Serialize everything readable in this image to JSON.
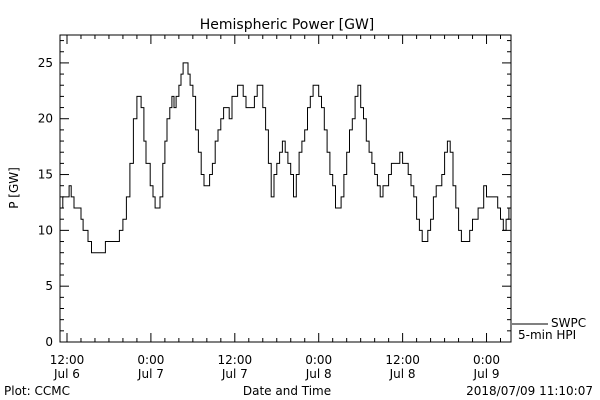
{
  "chart_data": {
    "type": "line",
    "title": "Hemispheric Power [GW]",
    "xlabel": "Date and Time",
    "ylabel": "P [GW]",
    "ylim": [
      0,
      27.5
    ],
    "xlim": [
      -1,
      63.5
    ],
    "grid": false,
    "x_unit": "hours from 2018-07-06 12:00",
    "y_ticks": [
      {
        "value": 0,
        "label": "0"
      },
      {
        "value": 5,
        "label": "5"
      },
      {
        "value": 10,
        "label": "10"
      },
      {
        "value": 15,
        "label": "15"
      },
      {
        "value": 20,
        "label": "20"
      },
      {
        "value": 25,
        "label": "25"
      }
    ],
    "x_ticks": [
      {
        "value": 0,
        "time": "12:00",
        "date": "Jul 6"
      },
      {
        "value": 12,
        "time": "0:00",
        "date": "Jul 7"
      },
      {
        "value": 24,
        "time": "12:00",
        "date": "Jul 7"
      },
      {
        "value": 36,
        "time": "0:00",
        "date": "Jul 8"
      },
      {
        "value": 48,
        "time": "12:00",
        "date": "Jul 8"
      },
      {
        "value": 60,
        "time": "0:00",
        "date": "Jul 9"
      }
    ],
    "series": [
      {
        "name": "",
        "x": [
          -1,
          -0.6,
          -0.3,
          0.0,
          0.3,
          0.6,
          1.0,
          1.3,
          1.7,
          2.0,
          2.3,
          2.7,
          3.0,
          3.5,
          4.0,
          4.5,
          5.0,
          5.5,
          6.0,
          6.5,
          7.0,
          7.5,
          8.0,
          8.5,
          9.0,
          9.5,
          10.0,
          10.3,
          10.6,
          11.0,
          11.3,
          11.6,
          11.9,
          12.3,
          12.6,
          13.0,
          13.3,
          13.7,
          14.0,
          14.3,
          14.7,
          15.0,
          15.3,
          15.6,
          16.0,
          16.3,
          16.6,
          17.0,
          17.3,
          17.6,
          18.0,
          18.4,
          18.8,
          19.2,
          19.6,
          20.0,
          20.4,
          20.8,
          21.2,
          21.6,
          22.0,
          22.4,
          22.8,
          23.2,
          23.6,
          24.0,
          24.4,
          24.8,
          25.2,
          25.6,
          26.0,
          26.4,
          26.8,
          27.2,
          27.6,
          28.0,
          28.4,
          28.8,
          29.2,
          29.6,
          30.0,
          30.4,
          30.8,
          31.2,
          31.6,
          32.0,
          32.4,
          32.8,
          33.2,
          33.6,
          34.0,
          34.4,
          34.8,
          35.2,
          35.6,
          36.0,
          36.4,
          36.8,
          37.2,
          37.6,
          38.0,
          38.4,
          38.8,
          39.2,
          39.6,
          40.0,
          40.4,
          40.8,
          41.2,
          41.6,
          42.0,
          42.4,
          42.8,
          43.2,
          43.6,
          44.0,
          44.4,
          44.8,
          45.2,
          45.6,
          46.0,
          46.4,
          46.8,
          47.2,
          47.6,
          48.0,
          48.4,
          48.8,
          49.2,
          49.6,
          50.0,
          50.4,
          50.8,
          51.2,
          51.6,
          52.0,
          52.4,
          52.8,
          53.2,
          53.6,
          54.0,
          54.4,
          54.8,
          55.2,
          55.6,
          56.0,
          56.4,
          56.8,
          57.2,
          57.6,
          58.0,
          58.4,
          58.8,
          59.2,
          59.6,
          60.0,
          60.4,
          60.8,
          61.2,
          61.6,
          62.0,
          62.4,
          62.8,
          63.2,
          63.5
        ],
        "y": [
          12,
          13,
          13,
          13,
          14,
          13,
          12,
          12,
          12,
          11,
          10,
          10,
          9,
          8,
          8,
          8,
          8,
          9,
          9,
          9,
          9,
          10,
          11,
          13,
          16,
          20,
          22,
          22,
          21,
          18,
          16,
          16,
          14,
          13,
          12,
          12,
          13,
          16,
          18,
          20,
          21,
          22,
          21,
          22,
          23,
          24,
          25,
          25,
          24,
          23,
          22,
          19,
          17,
          15,
          14,
          14,
          15,
          16,
          18,
          19,
          20,
          21,
          21,
          20,
          22,
          22,
          23,
          23,
          22,
          21,
          21,
          21,
          22,
          23,
          23,
          21,
          19,
          16,
          13,
          15,
          16,
          17,
          18,
          17,
          16,
          15,
          13,
          15,
          17,
          18,
          19,
          21,
          22,
          23,
          23,
          22,
          21,
          19,
          17,
          15,
          14,
          12,
          12,
          13,
          15,
          17,
          19,
          20,
          22,
          23,
          21,
          20,
          18,
          17,
          16,
          15,
          14,
          13,
          14,
          14,
          15,
          16,
          16,
          16,
          17,
          16,
          16,
          15,
          14,
          13,
          11,
          10,
          9,
          9,
          10,
          11,
          13,
          14,
          14,
          15,
          17,
          18,
          17,
          14,
          12,
          10,
          9,
          9,
          9,
          10,
          11,
          11,
          12,
          12,
          14,
          13,
          13,
          13,
          13,
          12,
          11,
          10,
          11,
          12,
          13
        ]
      }
    ]
  },
  "legend": {
    "source": "SWPC",
    "cadence": "5-min HPI"
  },
  "footer": {
    "plot_credit": "Plot: CCMC",
    "timestamp": "2018/07/09 11:10:07"
  }
}
